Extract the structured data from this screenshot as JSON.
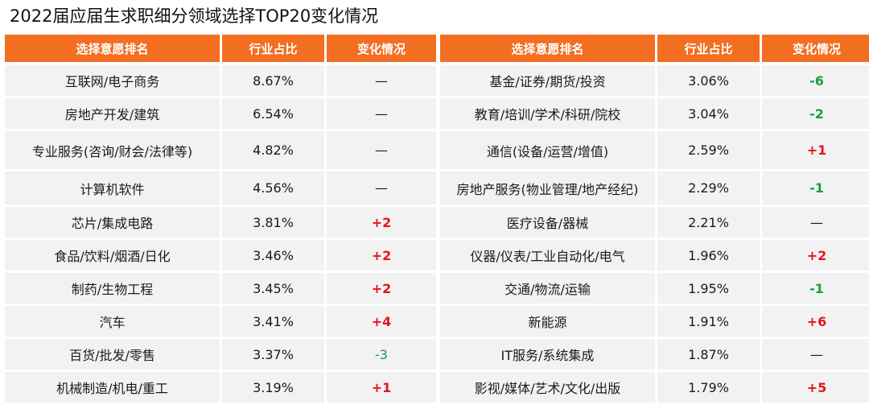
{
  "title": "2022届应届生求职细分领域选择TOP20变化情况",
  "colors": {
    "header_bg": "#f36e21",
    "row_bg": "#f2f2f2",
    "up": "#e8121e",
    "down": "#1a9d3f"
  },
  "chart_data": {
    "type": "table",
    "title": "2022届应届生求职细分领域选择TOP20变化情况",
    "columns": [
      "选择意愿排名",
      "行业占比",
      "变化情况"
    ],
    "left": [
      {
        "name": "互联网/电子商务",
        "share": "8.67%",
        "change": "—"
      },
      {
        "name": "房地产开发/建筑",
        "share": "6.54%",
        "change": "—"
      },
      {
        "name": "专业服务(咨询/财会/法律等)",
        "share": "4.82%",
        "change": "—"
      },
      {
        "name": "计算机软件",
        "share": "4.56%",
        "change": "—"
      },
      {
        "name": "芯片/集成电路",
        "share": "3.81%",
        "change": "+2"
      },
      {
        "name": "食品/饮料/烟酒/日化",
        "share": "3.46%",
        "change": "+2"
      },
      {
        "name": "制药/生物工程",
        "share": "3.45%",
        "change": "+2"
      },
      {
        "name": "汽车",
        "share": "3.41%",
        "change": "+4"
      },
      {
        "name": "百货/批发/零售",
        "share": "3.37%",
        "change": "-3"
      },
      {
        "name": "机械制造/机电/重工",
        "share": "3.19%",
        "change": "+1"
      }
    ],
    "right": [
      {
        "name": "基金/证券/期货/投资",
        "share": "3.06%",
        "change": "-6"
      },
      {
        "name": "教育/培训/学术/科研/院校",
        "share": "3.04%",
        "change": "-2"
      },
      {
        "name": "通信(设备/运营/增值)",
        "share": "2.59%",
        "change": "+1"
      },
      {
        "name": "房地产服务(物业管理/地产经纪)",
        "share": "2.29%",
        "change": "-1"
      },
      {
        "name": "医疗设备/器械",
        "share": "2.21%",
        "change": "—"
      },
      {
        "name": "仪器/仪表/工业自动化/电气",
        "share": "1.96%",
        "change": "+2"
      },
      {
        "name": "交通/物流/运输",
        "share": "1.95%",
        "change": "-1"
      },
      {
        "name": "新能源",
        "share": "1.91%",
        "change": "+6"
      },
      {
        "name": "IT服务/系统集成",
        "share": "1.87%",
        "change": "—"
      },
      {
        "name": "影视/媒体/艺术/文化/出版",
        "share": "1.79%",
        "change": "+5"
      }
    ]
  }
}
